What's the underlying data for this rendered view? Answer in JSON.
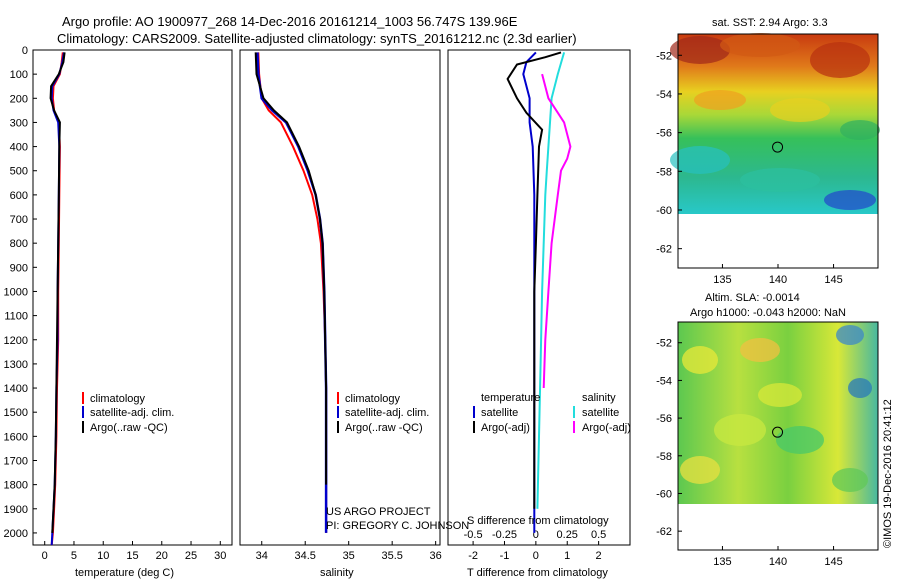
{
  "header": {
    "title_line1": "Argo profile: AO 1900977_268 14-Dec-2016 20161214_1003 56.747S 139.96E",
    "title_line2": "Climatology: CARS2009. Satellite-adjusted climatology: synTS_20161212.nc (2.3d earlier)"
  },
  "colors": {
    "climatology": "#ff0000",
    "satellite": "#0000cc",
    "argo": "#000000",
    "sal_satellite": "#22dddd",
    "sal_argo": "#ff00ff"
  },
  "chart_data": [
    {
      "type": "line",
      "name": "temperature",
      "xlabel": "temperature (deg C)",
      "xlim": [
        -2,
        32
      ],
      "ylim": [
        2050,
        0
      ],
      "xticks": [
        "0",
        "5",
        "10",
        "15",
        "20",
        "25",
        "30"
      ],
      "yticks": [
        "0",
        "100",
        "200",
        "300",
        "400",
        "500",
        "600",
        "700",
        "800",
        "900",
        "1000",
        "1100",
        "1200",
        "1300",
        "1400",
        "1500",
        "1600",
        "1700",
        "1800",
        "1900",
        "2000"
      ],
      "legend": [
        "climatology",
        "satellite-adj. clim.",
        "Argo(..raw -QC)"
      ],
      "series": [
        {
          "name": "climatology",
          "x": [
            3.1,
            2.9,
            2.6,
            1.5,
            1.4,
            1.6,
            2.4,
            2.6,
            2.5,
            2.4,
            2.3,
            2.3,
            2.1,
            2.0,
            1.8,
            1.6,
            1.4,
            1.2
          ],
          "y": [
            10,
            50,
            100,
            150,
            200,
            250,
            300,
            400,
            600,
            800,
            1000,
            1200,
            1400,
            1600,
            1800,
            1900,
            2000,
            2050
          ]
        },
        {
          "name": "satellite-adj. clim.",
          "x": [
            3.3,
            3.0,
            2.5,
            1.3,
            1.2,
            1.5,
            2.3,
            2.5,
            2.4,
            2.3,
            2.2,
            2.2,
            2.0,
            1.9,
            1.7,
            1.5,
            1.3,
            1.2
          ],
          "y": [
            10,
            50,
            100,
            150,
            200,
            250,
            300,
            400,
            600,
            800,
            1000,
            1200,
            1400,
            1600,
            1800,
            1900,
            2000,
            2050
          ]
        },
        {
          "name": "Argo(..raw -QC)",
          "x": [
            3.4,
            3.2,
            2.4,
            1.1,
            1.0,
            1.6,
            2.6,
            2.5,
            2.4,
            2.3,
            2.2,
            2.1,
            2.0,
            1.9,
            1.7,
            1.5,
            1.3
          ],
          "y": [
            10,
            50,
            100,
            150,
            200,
            250,
            300,
            400,
            600,
            800,
            1000,
            1200,
            1400,
            1600,
            1800,
            1900,
            2000
          ]
        }
      ]
    },
    {
      "type": "line",
      "name": "salinity",
      "xlabel": "salinity",
      "xlim": [
        33.75,
        36.05
      ],
      "ylim": [
        2050,
        0
      ],
      "xticks": [
        "34",
        "34.5",
        "35",
        "35.5",
        "36"
      ],
      "legend": [
        "climatology",
        "satellite-adj. clim.",
        "Argo(..raw -QC)"
      ],
      "series": [
        {
          "name": "climatology",
          "x": [
            33.96,
            33.97,
            34.0,
            34.08,
            34.22,
            34.36,
            34.48,
            34.58,
            34.64,
            34.68,
            34.71,
            34.73,
            34.74,
            34.74,
            34.74,
            34.74
          ],
          "y": [
            10,
            100,
            200,
            250,
            300,
            400,
            500,
            600,
            700,
            800,
            1000,
            1200,
            1400,
            1600,
            1800,
            2000
          ]
        },
        {
          "name": "satellite-adj. clim.",
          "x": [
            33.95,
            33.96,
            34.0,
            34.12,
            34.28,
            34.42,
            34.53,
            34.62,
            34.67,
            34.7,
            34.72,
            34.73,
            34.74,
            34.74,
            34.74,
            34.74
          ],
          "y": [
            10,
            100,
            200,
            250,
            300,
            400,
            500,
            600,
            700,
            800,
            1000,
            1200,
            1400,
            1600,
            1800,
            2000
          ]
        },
        {
          "name": "Argo(..raw -QC)",
          "x": [
            33.93,
            33.94,
            34.02,
            34.14,
            34.29,
            34.43,
            34.54,
            34.62,
            34.67,
            34.7,
            34.72,
            34.73,
            34.74,
            34.74,
            34.74
          ],
          "y": [
            10,
            100,
            200,
            250,
            300,
            400,
            500,
            600,
            700,
            800,
            1000,
            1200,
            1400,
            1600,
            1800
          ]
        }
      ]
    },
    {
      "type": "line",
      "name": "differences",
      "xlabel": "T difference from climatology",
      "xlabel2": "S difference from climatology",
      "xlim": [
        -2.8,
        3.0
      ],
      "ylim": [
        2050,
        0
      ],
      "xticks": [
        "-2",
        "-1",
        "0",
        "1",
        "2"
      ],
      "xticks2": [
        "-0.5",
        "-0.25",
        "0",
        "0.25",
        "0.5"
      ],
      "legend_temperature": [
        "temperature",
        "satellite",
        "Argo(-adj)"
      ],
      "legend_salinity": [
        "salinity",
        "satellite",
        "Argo(-adj)"
      ],
      "series": [
        {
          "name": "temperature satellite",
          "x": [
            0.0,
            -0.3,
            -0.4,
            -0.2,
            -0.2,
            -0.1,
            -0.05,
            -0.05,
            -0.05,
            -0.05,
            -0.05,
            -0.05
          ],
          "y": [
            10,
            50,
            100,
            200,
            300,
            400,
            600,
            800,
            1000,
            1400,
            1800,
            2000
          ]
        },
        {
          "name": "temperature Argo(-adj)",
          "x": [
            0.8,
            0.3,
            -0.6,
            -0.9,
            -0.6,
            -0.3,
            0.2,
            0.1,
            0.05,
            0.0,
            -0.05,
            -0.05,
            -0.05
          ],
          "y": [
            10,
            30,
            60,
            120,
            200,
            260,
            330,
            400,
            600,
            800,
            1000,
            1400,
            1900
          ]
        },
        {
          "name": "salinity satellite",
          "x": [
            0.9,
            0.7,
            0.5,
            0.45,
            0.4,
            0.35,
            0.3,
            0.25,
            0.2,
            0.15,
            0.1,
            0.05
          ],
          "y": [
            10,
            100,
            200,
            300,
            400,
            500,
            600,
            800,
            1000,
            1300,
            1600,
            1900
          ]
        },
        {
          "name": "salinity Argo(-adj)",
          "x": [
            0.2,
            0.4,
            0.9,
            1.1,
            1.0,
            0.8,
            0.7,
            0.5,
            0.4,
            0.3,
            0.25
          ],
          "y": [
            100,
            200,
            300,
            400,
            450,
            500,
            600,
            800,
            1000,
            1200,
            1400
          ]
        }
      ]
    }
  ],
  "maps": {
    "sst": {
      "title": "sat. SST: 2.94  Argo: 3.3",
      "yticks": [
        "-52",
        "-54",
        "-56",
        "-58",
        "-60",
        "-62"
      ],
      "xticks": [
        "135",
        "140",
        "145"
      ]
    },
    "sla": {
      "title_line1": "Altim. SLA: -0.0014",
      "title_line2": "Argo h1000: -0.043 h2000: NaN",
      "yticks": [
        "-52",
        "-54",
        "-56",
        "-58",
        "-60",
        "-62"
      ],
      "xticks": [
        "135",
        "140",
        "145"
      ]
    },
    "float_position": {
      "lon": 139.96,
      "lat": -56.747
    }
  },
  "credits": {
    "line1": "US ARGO PROJECT",
    "line2": "PI: GREGORY C. JOHNSON",
    "stamp": "©IMOS 19-Dec-2016 20:41:12"
  }
}
